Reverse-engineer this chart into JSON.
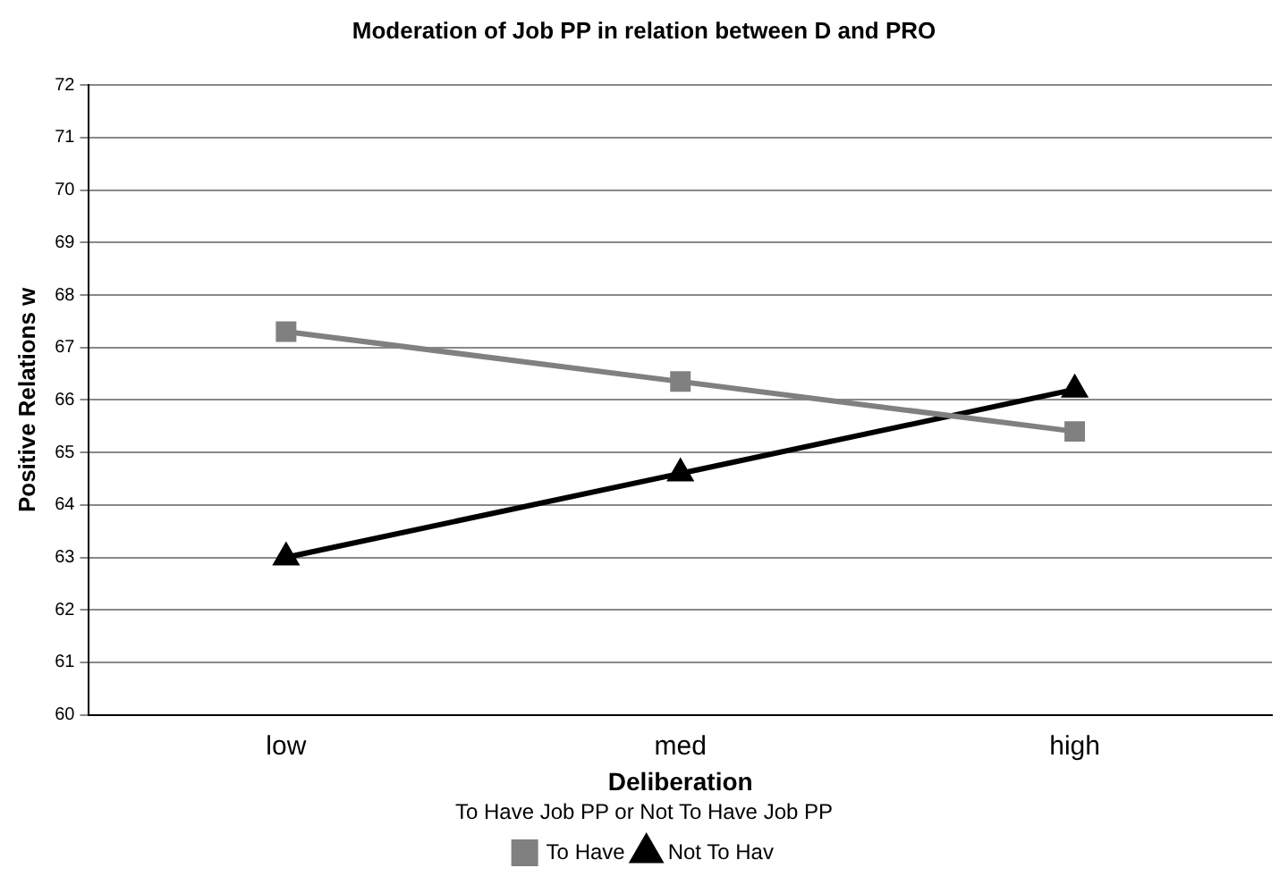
{
  "chart_data": {
    "type": "line",
    "title": "Moderation of Job PP in relation between D and PRO",
    "xlabel": "Deliberation",
    "ylabel": "Positive Relations w",
    "legend_title": "To Have Job PP or Not To Have Job PP",
    "categories": [
      "low",
      "med",
      "high"
    ],
    "series": [
      {
        "name": "To Have",
        "color": "#808080",
        "marker": "square",
        "values": [
          67.3,
          66.35,
          65.4
        ]
      },
      {
        "name": "Not To Hav",
        "color": "#000000",
        "marker": "triangle",
        "values": [
          63.0,
          64.6,
          66.2
        ]
      }
    ],
    "ylim": [
      60,
      72
    ],
    "yticks": [
      60,
      61,
      62,
      63,
      64,
      65,
      66,
      67,
      68,
      69,
      70,
      71,
      72
    ],
    "grid": "y",
    "legend": "bottom",
    "line_style": "solid"
  }
}
